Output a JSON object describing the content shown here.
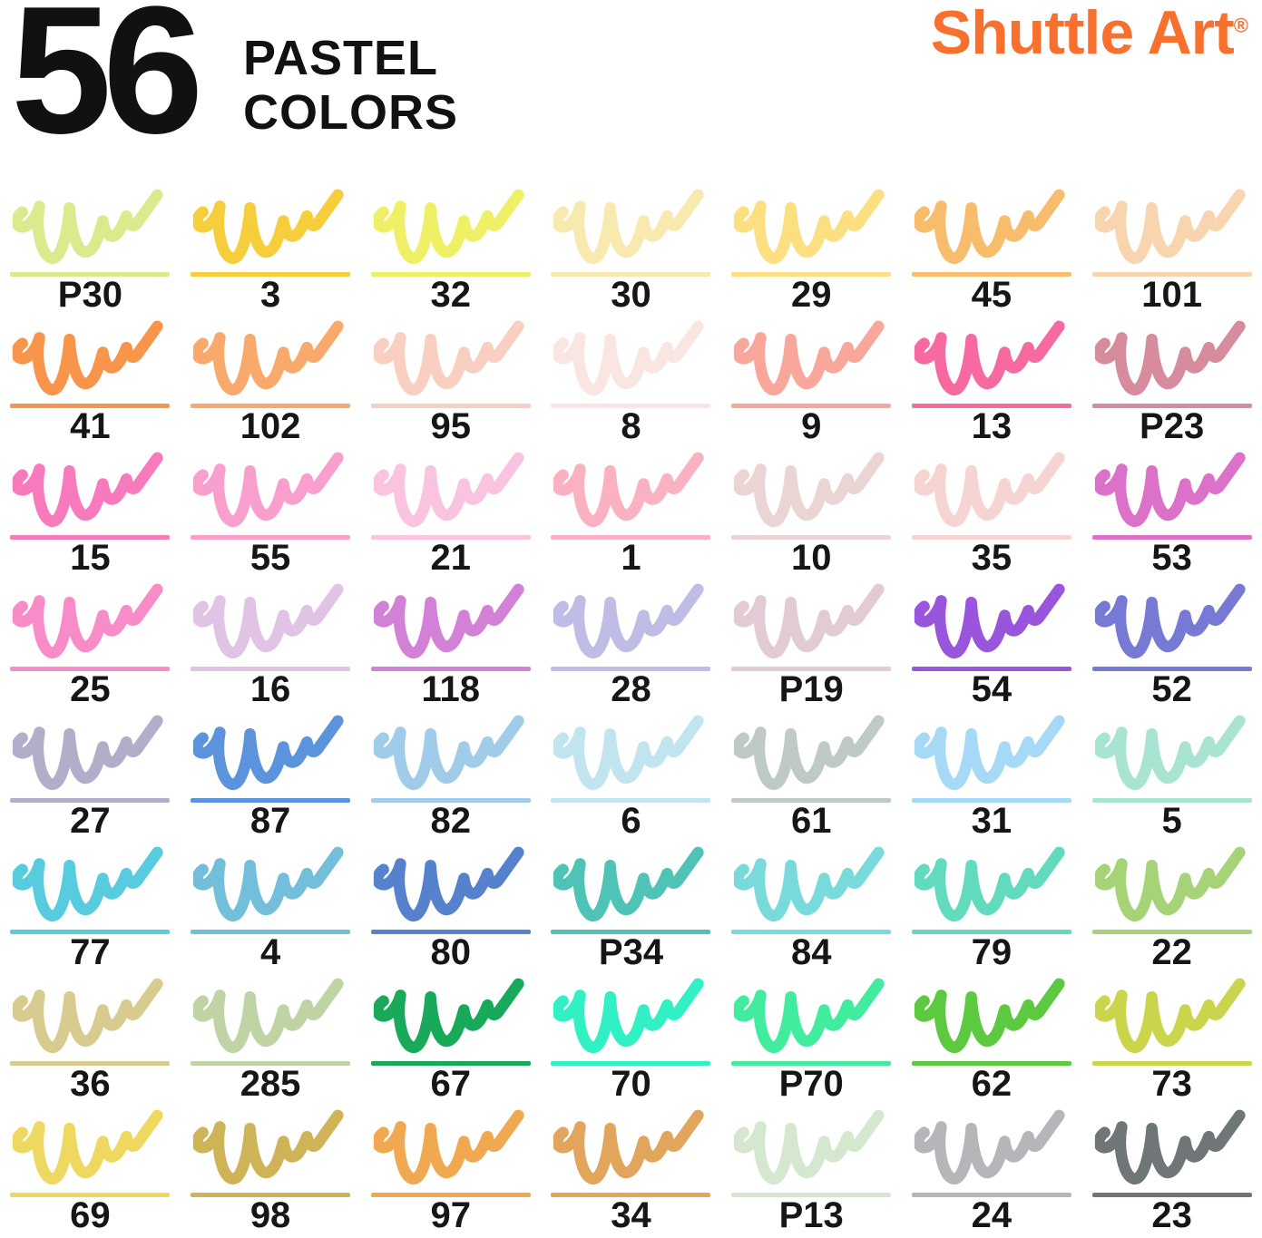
{
  "header": {
    "count": "56",
    "title_line1": "PASTEL",
    "title_line2": "COLORS",
    "brand": "Shuttle Art",
    "brand_reg": "®",
    "brand_color": "#F7702D",
    "text_color": "#111111"
  },
  "grid": {
    "columns": 7,
    "rows": 8,
    "swatch_style": "marker-scribble-with-underline"
  },
  "swatches": [
    {
      "label": "P30",
      "color": "#D9EB8D"
    },
    {
      "label": "3",
      "color": "#F6CE3C"
    },
    {
      "label": "32",
      "color": "#EFF066"
    },
    {
      "label": "30",
      "color": "#F8E9AE"
    },
    {
      "label": "29",
      "color": "#FBDF81"
    },
    {
      "label": "45",
      "color": "#F7BC6C"
    },
    {
      "label": "101",
      "color": "#F8D4AF"
    },
    {
      "label": "41",
      "color": "#F8954B"
    },
    {
      "label": "102",
      "color": "#F9A96C"
    },
    {
      "label": "95",
      "color": "#F8CFC1"
    },
    {
      "label": "8",
      "color": "#F9E6E3"
    },
    {
      "label": "9",
      "color": "#F9A79A"
    },
    {
      "label": "13",
      "color": "#F769A1"
    },
    {
      "label": "P23",
      "color": "#D78C9E"
    },
    {
      "label": "15",
      "color": "#F77ABD"
    },
    {
      "label": "55",
      "color": "#F99FCE"
    },
    {
      "label": "21",
      "color": "#FAC3DF"
    },
    {
      "label": "1",
      "color": "#FAB1C1"
    },
    {
      "label": "10",
      "color": "#EAD4D4"
    },
    {
      "label": "35",
      "color": "#F6D4D2"
    },
    {
      "label": "53",
      "color": "#DB71C9"
    },
    {
      "label": "25",
      "color": "#F88CC8"
    },
    {
      "label": "16",
      "color": "#E1C3E5"
    },
    {
      "label": "118",
      "color": "#D381D7"
    },
    {
      "label": "28",
      "color": "#BFBDE5"
    },
    {
      "label": "P19",
      "color": "#E2CBD4"
    },
    {
      "label": "54",
      "color": "#9956DC"
    },
    {
      "label": "52",
      "color": "#777AD5"
    },
    {
      "label": "27",
      "color": "#B2AECA"
    },
    {
      "label": "87",
      "color": "#5B94DC"
    },
    {
      "label": "82",
      "color": "#A0CCEA"
    },
    {
      "label": "6",
      "color": "#C1E4EF"
    },
    {
      "label": "61",
      "color": "#BECAC3"
    },
    {
      "label": "31",
      "color": "#A5D9F5"
    },
    {
      "label": "5",
      "color": "#A9E4D3"
    },
    {
      "label": "77",
      "color": "#58CCDF"
    },
    {
      "label": "4",
      "color": "#73BFDB"
    },
    {
      "label": "80",
      "color": "#5682CD"
    },
    {
      "label": "P34",
      "color": "#4FC4B6"
    },
    {
      "label": "84",
      "color": "#79DADC"
    },
    {
      "label": "79",
      "color": "#62DABD"
    },
    {
      "label": "22",
      "color": "#A6D378"
    },
    {
      "label": "36",
      "color": "#D7CB8F"
    },
    {
      "label": "285",
      "color": "#C0D3A4"
    },
    {
      "label": "67",
      "color": "#18A95B"
    },
    {
      "label": "70",
      "color": "#30F0C4"
    },
    {
      "label": "P70",
      "color": "#41EC9F"
    },
    {
      "label": "62",
      "color": "#5CC940"
    },
    {
      "label": "73",
      "color": "#CBD54B"
    },
    {
      "label": "69",
      "color": "#EFD860"
    },
    {
      "label": "98",
      "color": "#CFB457"
    },
    {
      "label": "97",
      "color": "#F0A950"
    },
    {
      "label": "34",
      "color": "#E1A55C"
    },
    {
      "label": "P13",
      "color": "#D5E8CF"
    },
    {
      "label": "24",
      "color": "#B4B6B9"
    },
    {
      "label": "23",
      "color": "#707678"
    }
  ]
}
